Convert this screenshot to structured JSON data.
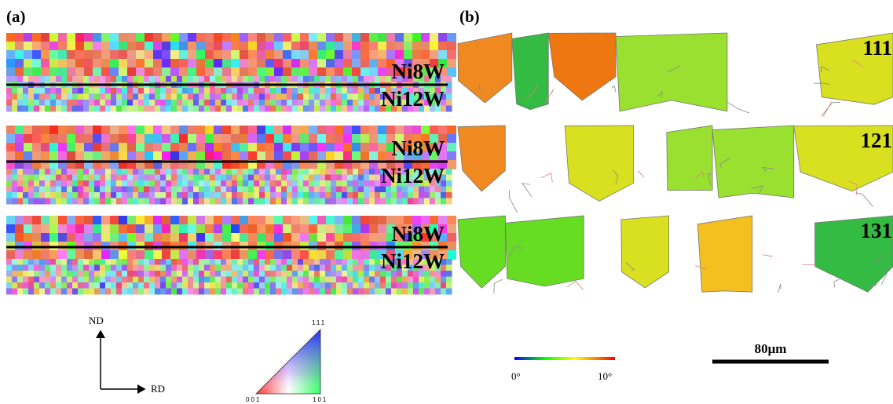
{
  "panel_a": {
    "label": "(a)",
    "maps": [
      {
        "upper": "Ni8W",
        "lower": "Ni12W"
      },
      {
        "upper": "Ni8W",
        "lower": "Ni12W"
      },
      {
        "upper": "Ni8W",
        "lower": "Ni12W"
      }
    ]
  },
  "panel_b": {
    "label": "(b)",
    "maps": [
      {
        "label": "111"
      },
      {
        "label": "121"
      },
      {
        "label": "131"
      }
    ]
  },
  "axes": {
    "vertical": "ND",
    "horizontal": "RD"
  },
  "ipf_triangle": {
    "top": "111",
    "left": "001",
    "right": "101"
  },
  "color_bar": {
    "min": "0°",
    "max": "10°"
  },
  "scale_bar": {
    "label": "80μm"
  }
}
